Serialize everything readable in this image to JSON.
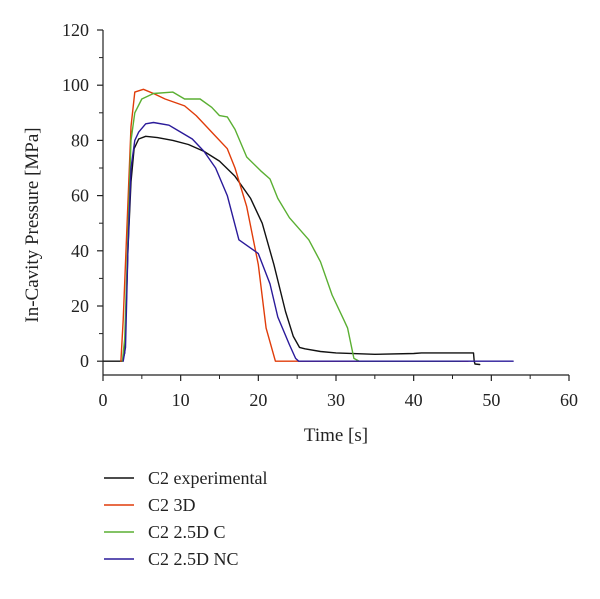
{
  "chart_data": {
    "type": "line",
    "title": "",
    "xlabel": "Time [s]",
    "ylabel": "In-Cavity Pressure [MPa]",
    "xlim": [
      0,
      60
    ],
    "ylim": [
      -5,
      120
    ],
    "xticks": [
      0,
      10,
      20,
      30,
      40,
      50,
      60
    ],
    "yticks": [
      0,
      20,
      40,
      60,
      80,
      100,
      120
    ],
    "grid": false,
    "legend_position": "below",
    "series": [
      {
        "name": "C2 experimental",
        "color": "#111111",
        "points": [
          [
            0,
            0
          ],
          [
            2.5,
            0
          ],
          [
            2.8,
            3
          ],
          [
            3.2,
            40
          ],
          [
            3.6,
            65
          ],
          [
            4.0,
            77
          ],
          [
            4.6,
            80.5
          ],
          [
            5.5,
            81.5
          ],
          [
            7,
            81
          ],
          [
            9,
            80
          ],
          [
            11,
            78.5
          ],
          [
            13,
            76
          ],
          [
            15,
            72.5
          ],
          [
            17,
            67
          ],
          [
            19,
            59
          ],
          [
            20.5,
            50
          ],
          [
            22,
            35
          ],
          [
            23.5,
            18
          ],
          [
            24.5,
            9
          ],
          [
            25.3,
            5
          ],
          [
            26,
            4.5
          ],
          [
            28,
            3.5
          ],
          [
            30,
            3
          ],
          [
            35,
            2.5
          ],
          [
            40,
            2.8
          ],
          [
            41,
            3
          ],
          [
            45,
            3
          ],
          [
            47.7,
            3
          ],
          [
            47.8,
            0
          ],
          [
            47.9,
            -1
          ],
          [
            48.5,
            -1.2
          ]
        ]
      },
      {
        "name": "C2 3D",
        "color": "#e03c0a",
        "points": [
          [
            2.3,
            0
          ],
          [
            2.6,
            15
          ],
          [
            3.1,
            50
          ],
          [
            3.6,
            85
          ],
          [
            4.1,
            97.5
          ],
          [
            5.2,
            98.5
          ],
          [
            6.5,
            97
          ],
          [
            8,
            95
          ],
          [
            10.5,
            92.5
          ],
          [
            12,
            89
          ],
          [
            14,
            83
          ],
          [
            16,
            77
          ],
          [
            17,
            70
          ],
          [
            18.5,
            56
          ],
          [
            20,
            35
          ],
          [
            21,
            12
          ],
          [
            22.2,
            0
          ],
          [
            30,
            0
          ],
          [
            40,
            0
          ],
          [
            47,
            0
          ]
        ]
      },
      {
        "name": "C2 2.5D C",
        "color": "#5aaf32",
        "points": [
          [
            2.5,
            0
          ],
          [
            2.8,
            8
          ],
          [
            3.2,
            45
          ],
          [
            3.6,
            80
          ],
          [
            4.1,
            90
          ],
          [
            5,
            95
          ],
          [
            6.5,
            97
          ],
          [
            9,
            97.5
          ],
          [
            10.5,
            95
          ],
          [
            12.5,
            95
          ],
          [
            14,
            92
          ],
          [
            15,
            89
          ],
          [
            16,
            88.5
          ],
          [
            17,
            84
          ],
          [
            18.5,
            74
          ],
          [
            20.3,
            69
          ],
          [
            21.5,
            66
          ],
          [
            22.5,
            59
          ],
          [
            24,
            52
          ],
          [
            26.5,
            44
          ],
          [
            28,
            36
          ],
          [
            29.5,
            24
          ],
          [
            31,
            15
          ],
          [
            31.5,
            12
          ],
          [
            32.3,
            1
          ],
          [
            33,
            0
          ],
          [
            40,
            0
          ],
          [
            46,
            0
          ]
        ]
      },
      {
        "name": "C2 2.5D NC",
        "color": "#2a1a9a",
        "points": [
          [
            2.6,
            0
          ],
          [
            2.9,
            5
          ],
          [
            3.2,
            40
          ],
          [
            3.6,
            70
          ],
          [
            4.1,
            80
          ],
          [
            4.6,
            83
          ],
          [
            5.5,
            86
          ],
          [
            6.5,
            86.5
          ],
          [
            8.5,
            85.5
          ],
          [
            10,
            83
          ],
          [
            11.5,
            80.5
          ],
          [
            13,
            76
          ],
          [
            14.5,
            70
          ],
          [
            16,
            60
          ],
          [
            17.5,
            44
          ],
          [
            19.5,
            40
          ],
          [
            20,
            39
          ],
          [
            21.5,
            28
          ],
          [
            22.5,
            16
          ],
          [
            24,
            6
          ],
          [
            24.8,
            1
          ],
          [
            25.2,
            0
          ],
          [
            35,
            0
          ],
          [
            45,
            0
          ],
          [
            52.8,
            0
          ]
        ]
      }
    ]
  }
}
